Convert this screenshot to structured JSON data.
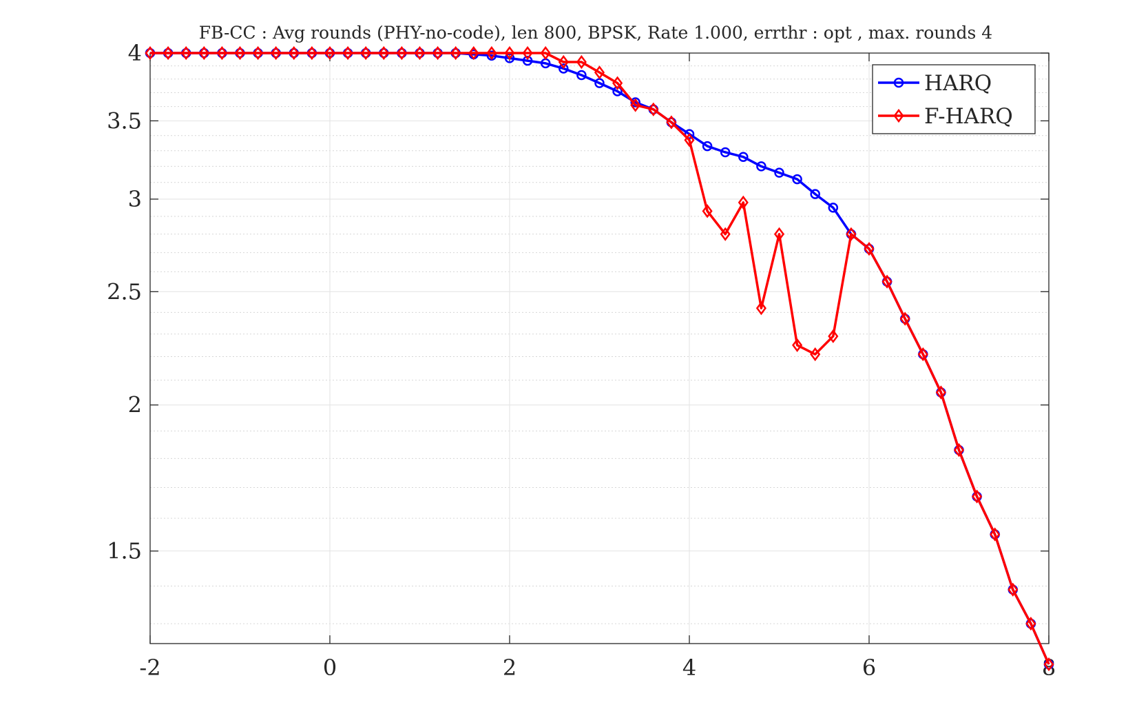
{
  "chart_data": {
    "type": "line",
    "title": "FB-CC : Avg rounds (PHY-no-code), len 800, BPSK, Rate 1.000, errthr : opt , max. rounds 4",
    "xlabel": "",
    "ylabel": "",
    "xlim": [
      -2,
      8
    ],
    "ylim": [
      1.25,
      4
    ],
    "y_scale": "log",
    "grid": true,
    "minor_grid": true,
    "legend_position": "top-right",
    "xticks": [
      -2,
      0,
      2,
      4,
      6,
      8
    ],
    "xtick_labels": [
      "-2",
      "0",
      "2",
      "4",
      "6",
      "8"
    ],
    "yticks": [
      1.5,
      2,
      2.5,
      3,
      3.5,
      4
    ],
    "ytick_labels": [
      "1.5",
      "2",
      "2.5",
      "3",
      "3.5",
      "4"
    ],
    "x": [
      -2,
      -1.8,
      -1.6,
      -1.4,
      -1.2,
      -1,
      -0.8,
      -0.6,
      -0.4,
      -0.2,
      0,
      0.2,
      0.4,
      0.6,
      0.8,
      1,
      1.2,
      1.4,
      1.6,
      1.8,
      2,
      2.2,
      2.4,
      2.6,
      2.8,
      3,
      3.2,
      3.4,
      3.6,
      3.8,
      4,
      4.2,
      4.4,
      4.6,
      4.8,
      5,
      5.2,
      5.4,
      5.6,
      5.8,
      6,
      6.2,
      6.4,
      6.6,
      6.8,
      7,
      7.2,
      7.4,
      7.6,
      7.8,
      8
    ],
    "series": [
      {
        "name": "HARQ",
        "color": "#0000ff",
        "marker": "circle",
        "values": [
          4.0,
          4.0,
          4.0,
          4.0,
          4.0,
          4.0,
          4.0,
          4.0,
          4.0,
          4.0,
          4.0,
          4.0,
          4.0,
          4.0,
          4.0,
          4.0,
          4.0,
          4.0,
          3.99,
          3.98,
          3.96,
          3.94,
          3.92,
          3.88,
          3.83,
          3.77,
          3.71,
          3.63,
          3.58,
          3.49,
          3.41,
          3.33,
          3.29,
          3.26,
          3.2,
          3.16,
          3.12,
          3.03,
          2.95,
          2.8,
          2.72,
          2.55,
          2.37,
          2.21,
          2.05,
          1.83,
          1.67,
          1.55,
          1.39,
          1.3,
          1.2
        ]
      },
      {
        "name": "F-HARQ",
        "color": "#ff0000",
        "marker": "diamond",
        "values": [
          4.0,
          4.0,
          4.0,
          4.0,
          4.0,
          4.0,
          4.0,
          4.0,
          4.0,
          4.0,
          4.0,
          4.0,
          4.0,
          4.0,
          4.0,
          4.0,
          4.0,
          4.0,
          4.0,
          4.0,
          4.0,
          4.0,
          4.0,
          3.93,
          3.93,
          3.85,
          3.77,
          3.61,
          3.58,
          3.49,
          3.37,
          2.93,
          2.8,
          2.98,
          2.42,
          2.8,
          2.25,
          2.21,
          2.29,
          2.8,
          2.72,
          2.55,
          2.37,
          2.21,
          2.05,
          1.83,
          1.67,
          1.55,
          1.39,
          1.3,
          1.2
        ]
      }
    ]
  }
}
